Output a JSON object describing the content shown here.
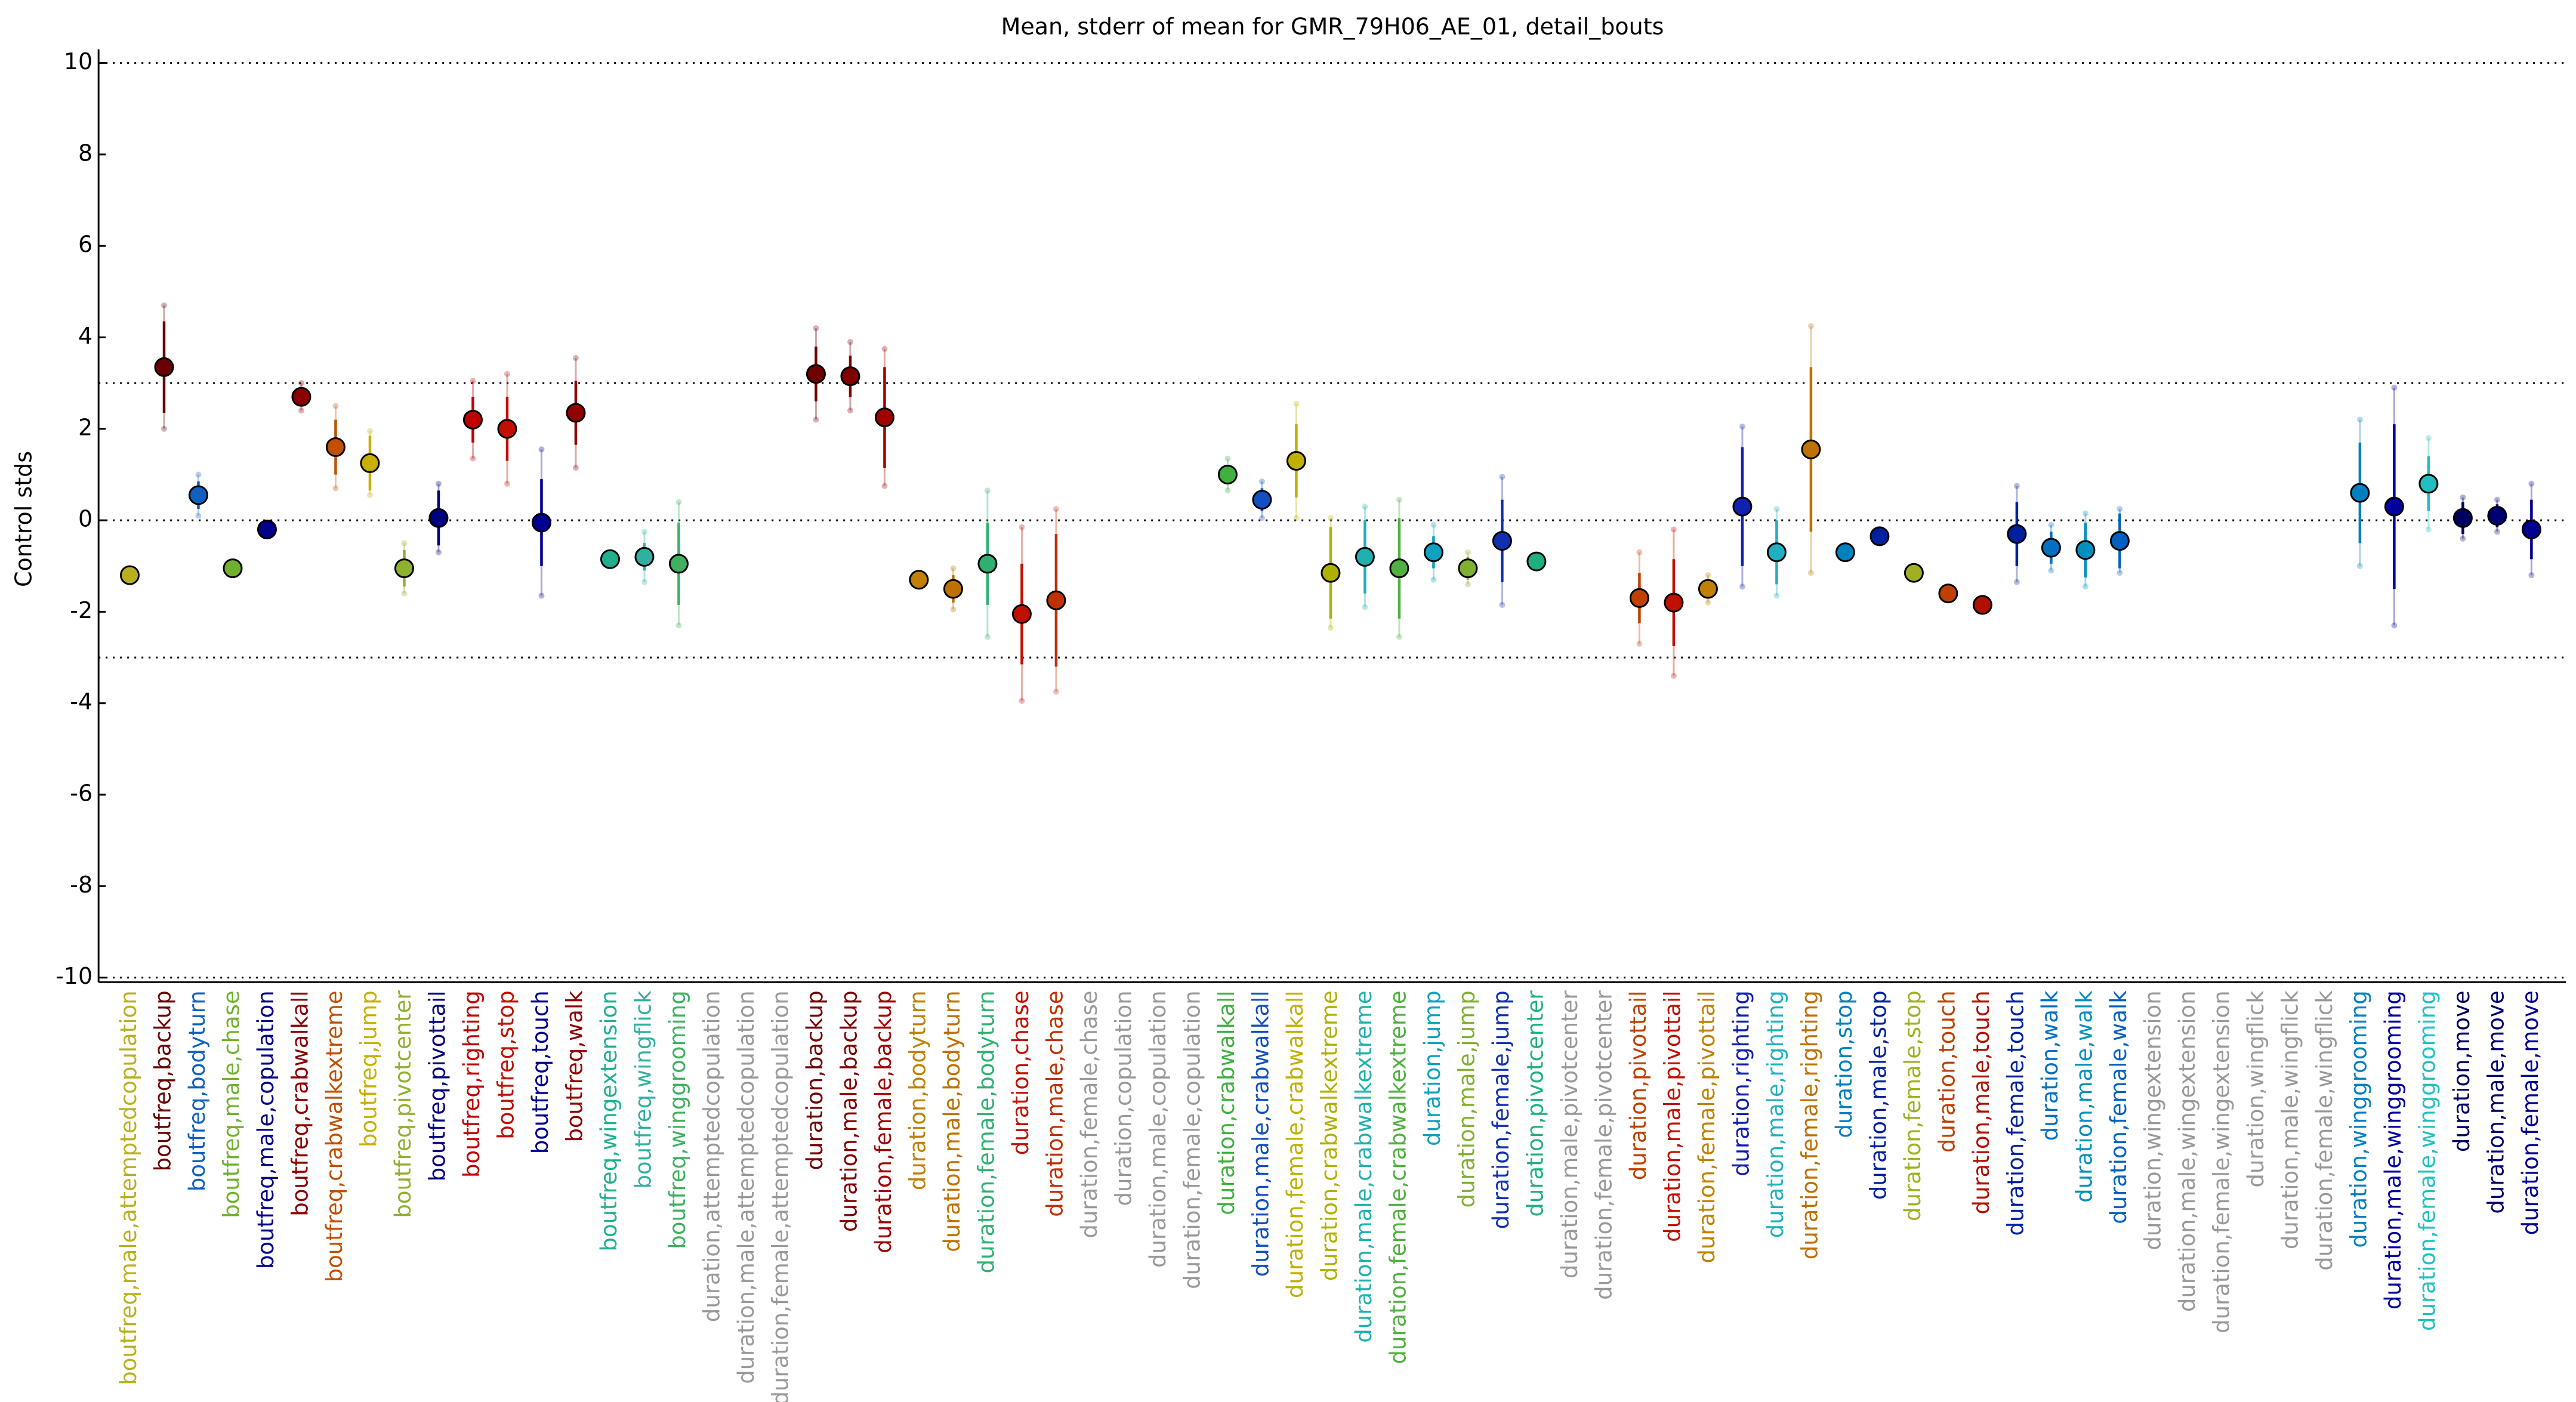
{
  "chart_data": {
    "type": "errorbar",
    "title": "Mean, stderr of mean for GMR_79H06_AE_01, detail_bouts",
    "y_label": "Control stds",
    "categories": [
      "boutfreq,male,attemptedcopulation",
      "boutfreq,backup",
      "boutfreq,bodyturn",
      "boutfreq,male,chase",
      "boutfreq,male,copulation",
      "boutfreq,crabwalkall",
      "boutfreq,crabwalkextreme",
      "boutfreq,jump",
      "boutfreq,pivotcenter",
      "boutfreq,pivottail",
      "boutfreq,righting",
      "boutfreq,stop",
      "boutfreq,touch",
      "boutfreq,walk",
      "boutfreq,wingextension",
      "boutfreq,wingflick",
      "boutfreq,winggrooming",
      "duration,attemptedcopulation",
      "duration,male,attemptedcopulation",
      "duration,female,attemptedcopulation",
      "duration,backup",
      "duration,male,backup",
      "duration,female,backup",
      "duration,bodyturn",
      "duration,male,bodyturn",
      "duration,female,bodyturn",
      "duration,chase",
      "duration,male,chase",
      "duration,female,chase",
      "duration,copulation",
      "duration,male,copulation",
      "duration,female,copulation",
      "duration,crabwalkall",
      "duration,male,crabwalkall",
      "duration,female,crabwalkall",
      "duration,crabwalkextreme",
      "duration,male,crabwalkextreme",
      "duration,female,crabwalkextreme",
      "duration,jump",
      "duration,male,jump",
      "duration,female,jump",
      "duration,pivotcenter",
      "duration,male,pivotcenter",
      "duration,female,pivotcenter",
      "duration,pivottail",
      "duration,male,pivottail",
      "duration,female,pivottail",
      "duration,righting",
      "duration,male,righting",
      "duration,female,righting",
      "duration,stop",
      "duration,male,stop",
      "duration,female,stop",
      "duration,touch",
      "duration,male,touch",
      "duration,female,touch",
      "duration,walk",
      "duration,male,walk",
      "duration,female,walk",
      "duration,wingextension",
      "duration,male,wingextension",
      "duration,female,wingextension",
      "duration,wingflick",
      "duration,male,wingflick",
      "duration,female,wingflick",
      "duration,winggrooming",
      "duration,male,winggrooming",
      "duration,female,winggrooming",
      "duration,move",
      "duration,male,move",
      "duration,female,move"
    ],
    "values": [
      -1.2,
      3.35,
      0.55,
      -1.05,
      -0.2,
      2.7,
      1.6,
      1.25,
      -1.05,
      0.05,
      2.2,
      2.0,
      -0.05,
      2.35,
      -0.85,
      -0.8,
      -0.95,
      null,
      null,
      null,
      3.2,
      3.15,
      2.25,
      -1.3,
      -1.5,
      -0.95,
      -2.05,
      -1.75,
      null,
      null,
      null,
      null,
      1.0,
      0.45,
      1.3,
      -1.15,
      -0.8,
      -1.05,
      -0.7,
      -1.05,
      -0.45,
      -0.9,
      null,
      null,
      -1.7,
      -1.8,
      -1.5,
      0.3,
      -0.7,
      1.55,
      -0.7,
      -0.35,
      -1.15,
      -1.6,
      -1.85,
      -0.3,
      -0.6,
      -0.65,
      -0.45,
      null,
      null,
      null,
      null,
      null,
      null,
      0.6,
      0.3,
      0.8,
      0.05,
      0.1,
      -0.2
    ],
    "errors": [
      0,
      1.0,
      0.3,
      0,
      0,
      0.2,
      0.6,
      0.6,
      0.4,
      0.6,
      0.5,
      0.7,
      0.95,
      0.7,
      0,
      0.3,
      0.9,
      null,
      null,
      null,
      0.6,
      0.45,
      1.1,
      0.1,
      0.3,
      0.9,
      1.1,
      1.45,
      null,
      null,
      null,
      null,
      0.2,
      0.25,
      0.8,
      1.0,
      0.8,
      1.1,
      0.35,
      0.25,
      0.9,
      0.1,
      null,
      null,
      0.55,
      0.95,
      0.2,
      1.3,
      0.7,
      1.8,
      0.1,
      0.1,
      0.1,
      0.1,
      0.1,
      0.7,
      0.35,
      0.6,
      0.6,
      null,
      null,
      null,
      null,
      null,
      null,
      1.1,
      1.8,
      0.6,
      0.35,
      0.25,
      0.65
    ],
    "outer_errors": [
      0,
      1.35,
      0.45,
      0,
      0,
      0.3,
      0.9,
      0.7,
      0.55,
      0.75,
      0.85,
      1.2,
      1.6,
      1.2,
      0,
      0.55,
      1.35,
      null,
      null,
      null,
      1.0,
      0.75,
      1.5,
      0.15,
      0.45,
      1.6,
      1.9,
      2.0,
      null,
      null,
      null,
      null,
      0.35,
      0.4,
      1.25,
      1.2,
      1.1,
      1.5,
      0.6,
      0.35,
      1.4,
      0.15,
      null,
      null,
      1.0,
      1.6,
      0.3,
      1.75,
      0.95,
      2.7,
      0.15,
      0.15,
      0.15,
      0.15,
      0.15,
      1.05,
      0.5,
      0.8,
      0.7,
      null,
      null,
      null,
      null,
      null,
      null,
      1.6,
      2.6,
      1.0,
      0.45,
      0.35,
      1.0
    ],
    "colors": [
      "#b8b020",
      "#6b0000",
      "#1060c0",
      "#70b030",
      "#00008b",
      "#8b0000",
      "#c05000",
      "#c8b000",
      "#90b030",
      "#000080",
      "#c00000",
      "#c01000",
      "#000090",
      "#900000",
      "#20b090",
      "#30b0a0",
      "#40b060",
      "#999999",
      "#999999",
      "#999999",
      "#700000",
      "#800000",
      "#a00000",
      "#c08000",
      "#c07000",
      "#30b070",
      "#c01000",
      "#c03000",
      "#999999",
      "#999999",
      "#999999",
      "#999999",
      "#40b040",
      "#1050c0",
      "#c0b000",
      "#b0b000",
      "#20b0b0",
      "#50b040",
      "#10a0c0",
      "#80b030",
      "#1030b0",
      "#20b080",
      "#999999",
      "#999999",
      "#c04000",
      "#c01000",
      "#c08000",
      "#1020b0",
      "#20b0c0",
      "#c07000",
      "#0080c0",
      "#0020a0",
      "#a0b020",
      "#c04000",
      "#b01000",
      "#0020a0",
      "#0070c0",
      "#0090c0",
      "#0060c0",
      "#999999",
      "#999999",
      "#999999",
      "#999999",
      "#999999",
      "#999999",
      "#0080c0",
      "#0000a0",
      "#20c0c0",
      "#000060",
      "#000070",
      "#000090"
    ],
    "ylim": [
      -10.1,
      10.3
    ],
    "yticks": [
      -10,
      -8,
      -6,
      -4,
      -2,
      0,
      2,
      4,
      6,
      8,
      10
    ],
    "hlines": [
      10,
      3,
      0,
      -3,
      -10
    ]
  }
}
